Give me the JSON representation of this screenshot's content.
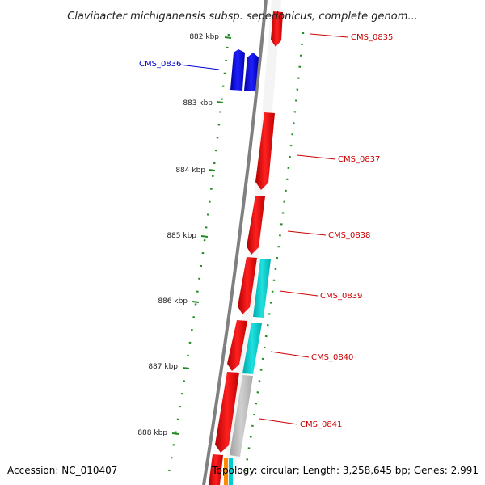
{
  "title": "Clavibacter michiganensis subsp. sepedonicus, complete genom...",
  "footer": {
    "accession": "Accession: NC_010407",
    "topology": "Topology: circular; Length: 3,258,645 bp; Genes: 2,991"
  },
  "scale_labels": [
    "882 kbp",
    "883 kbp",
    "884 kbp",
    "885 kbp",
    "886 kbp",
    "887 kbp",
    "888 kbp"
  ],
  "genes": [
    {
      "name": "CMS_0835",
      "strand": "forward",
      "color": "#cc0000"
    },
    {
      "name": "CMS_0836",
      "strand": "reverse",
      "color": "#0000cc"
    },
    {
      "name": "CMS_0837",
      "strand": "forward",
      "color": "#cc0000"
    },
    {
      "name": "CMS_0838",
      "strand": "forward",
      "color": "#cc0000"
    },
    {
      "name": "CMS_0839",
      "strand": "forward",
      "color": "#cc0000"
    },
    {
      "name": "CMS_0840",
      "strand": "forward",
      "color": "#cc0000"
    },
    {
      "name": "CMS_0841",
      "strand": "forward",
      "color": "#cc0000"
    }
  ],
  "colors": {
    "gene_red": "#ff0000",
    "gene_blue": "#0000ff",
    "cyan_track": "#00cccc",
    "gray_track": "#bbbbbb",
    "backbone": "#808080",
    "gc_dots": "#228b22"
  }
}
